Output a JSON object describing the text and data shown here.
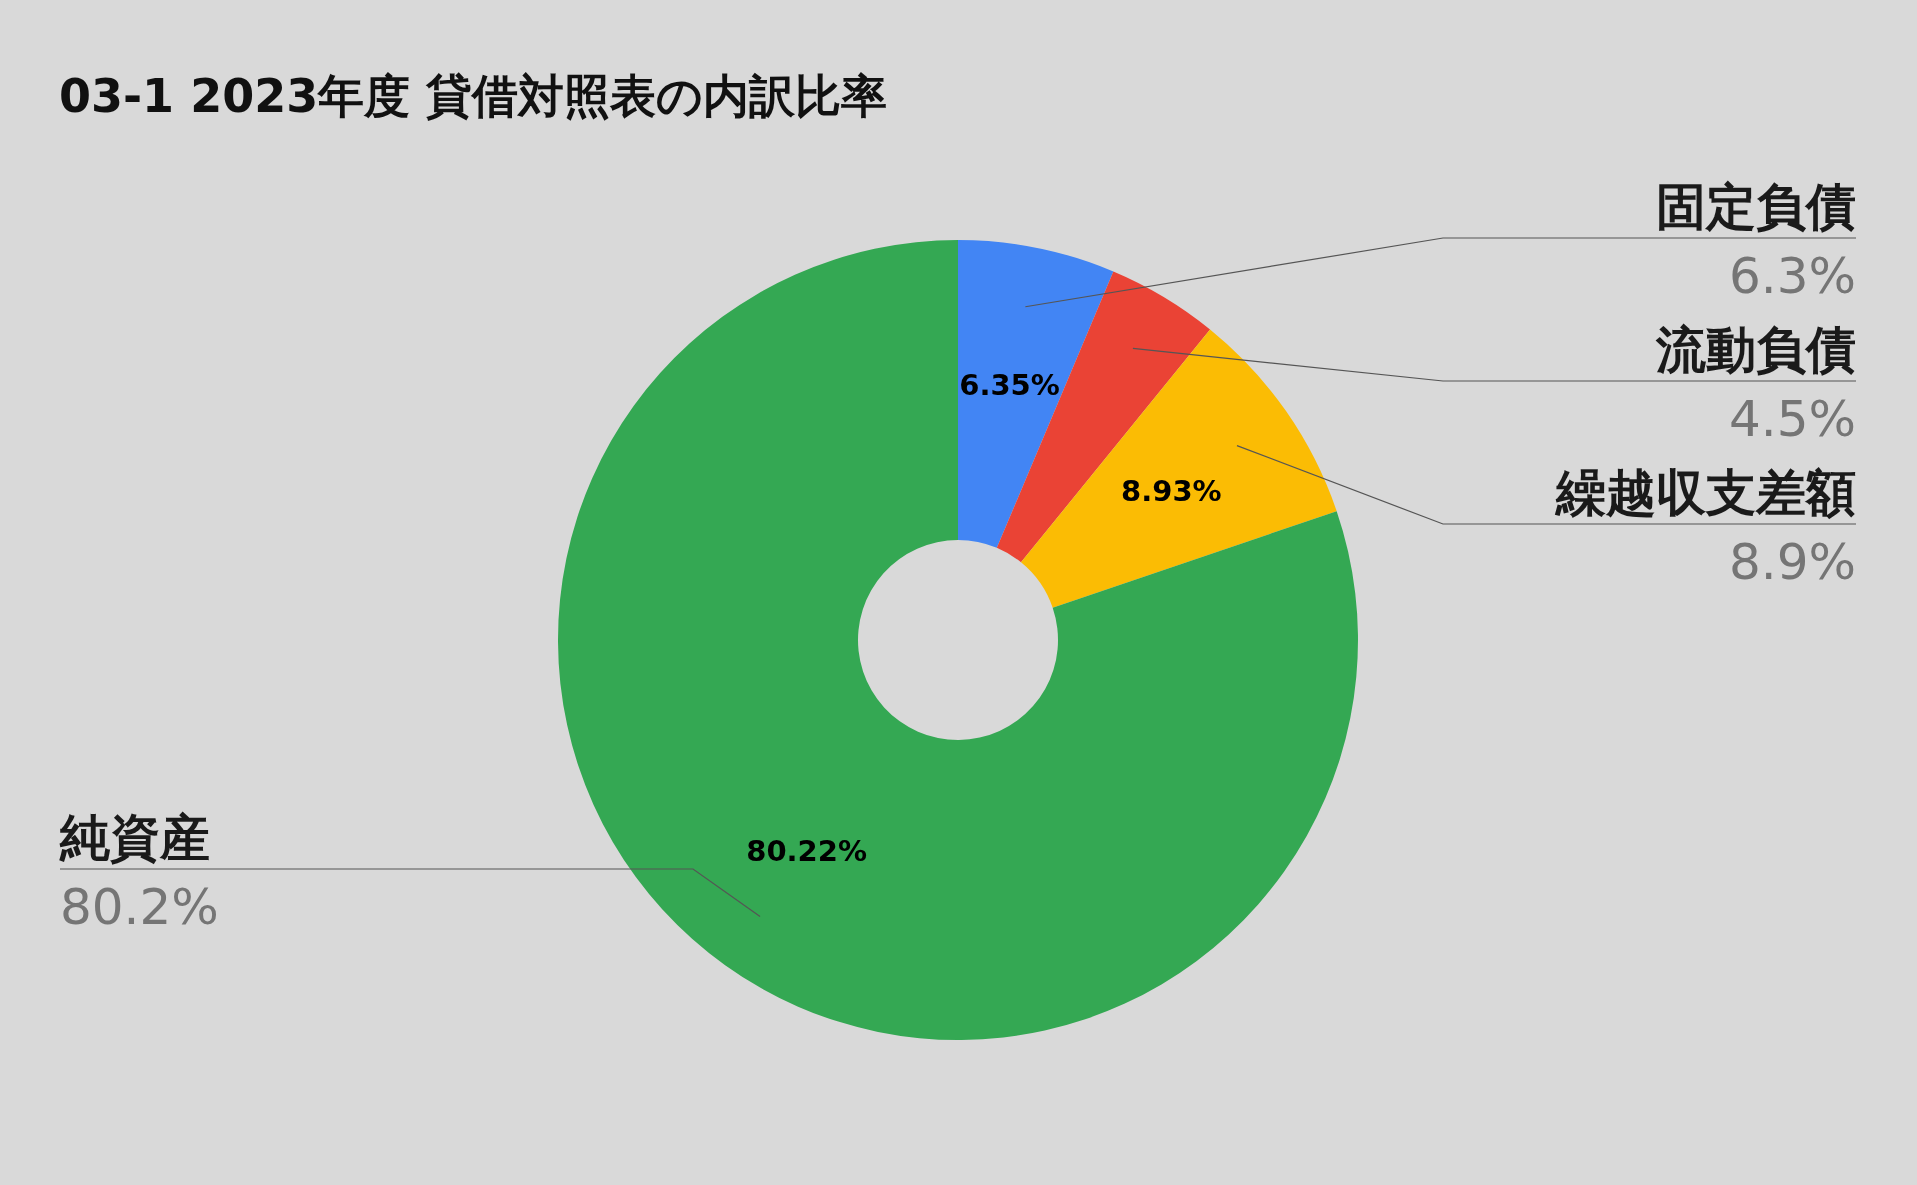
{
  "chart_data": {
    "type": "donut",
    "title": "03-1 2023年度 貸借対照表の内訳比率",
    "categories": [
      "固定負債",
      "流動負債",
      "繰越収支差額",
      "純資産"
    ],
    "values": [
      6.35,
      4.5,
      8.93,
      80.22
    ],
    "colors": [
      "#4285f4",
      "#ea4335",
      "#fbbc04",
      "#34a853"
    ],
    "value_labels": [
      "6.35%",
      null,
      "8.93%",
      "80.22%"
    ],
    "annotations": [
      "6.3%",
      "4.5%",
      "8.9%",
      "80.2%"
    ]
  }
}
